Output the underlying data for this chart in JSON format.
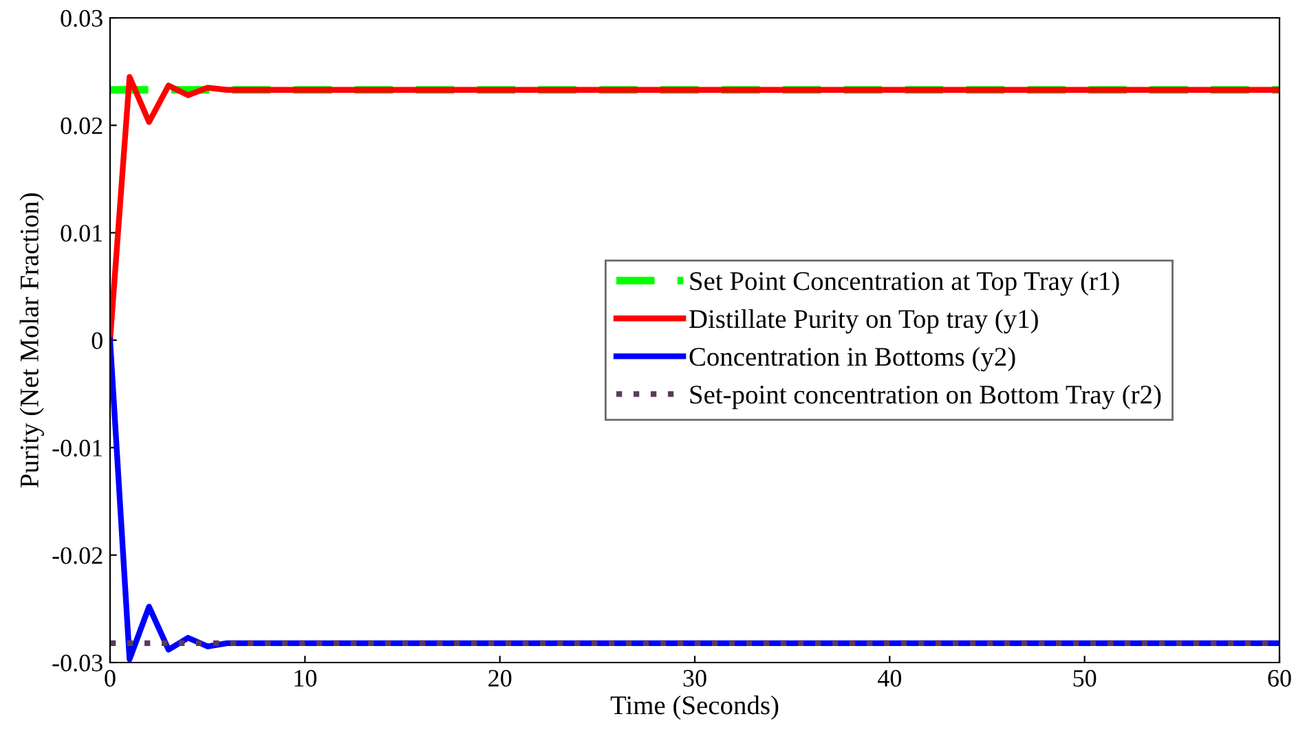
{
  "chart_data": {
    "type": "line",
    "xlabel": "Time (Seconds)",
    "ylabel": "Purity (Net Molar Fraction)",
    "xlim": [
      0,
      60
    ],
    "ylim": [
      -0.03,
      0.03
    ],
    "xticks": [
      0,
      10,
      20,
      30,
      40,
      50,
      60
    ],
    "yticks": [
      -0.03,
      -0.02,
      -0.01,
      0,
      0.01,
      0.02,
      0.03
    ],
    "grid": false,
    "legend": "right",
    "marker": "none",
    "series": [
      {
        "name": "Set Point Concentration at Top Tray (r1)",
        "color": "#00ff00",
        "line_style": "dashed",
        "x": [
          0,
          60
        ],
        "values": [
          0.0233,
          0.0233
        ]
      },
      {
        "name": "Distillate Purity on Top tray (y1)",
        "color": "#ff0000",
        "line_style": "solid",
        "x": [
          0,
          1,
          2,
          3,
          4,
          5,
          6,
          60
        ],
        "values": [
          0,
          0.0245,
          0.0203,
          0.0237,
          0.0228,
          0.0235,
          0.0233,
          0.0233
        ]
      },
      {
        "name": "Concentration in Bottoms (y2)",
        "color": "#0000ff",
        "line_style": "solid",
        "x": [
          0,
          1,
          2,
          3,
          4,
          5,
          6,
          60
        ],
        "values": [
          0,
          -0.0297,
          -0.0248,
          -0.0288,
          -0.0277,
          -0.0285,
          -0.0282,
          -0.0282
        ]
      },
      {
        "name": "Set-point concentration on Bottom Tray (r2)",
        "color": "#5c3a5c",
        "line_style": "dotted",
        "x": [
          0,
          60
        ],
        "values": [
          -0.0282,
          -0.0282
        ]
      }
    ]
  }
}
